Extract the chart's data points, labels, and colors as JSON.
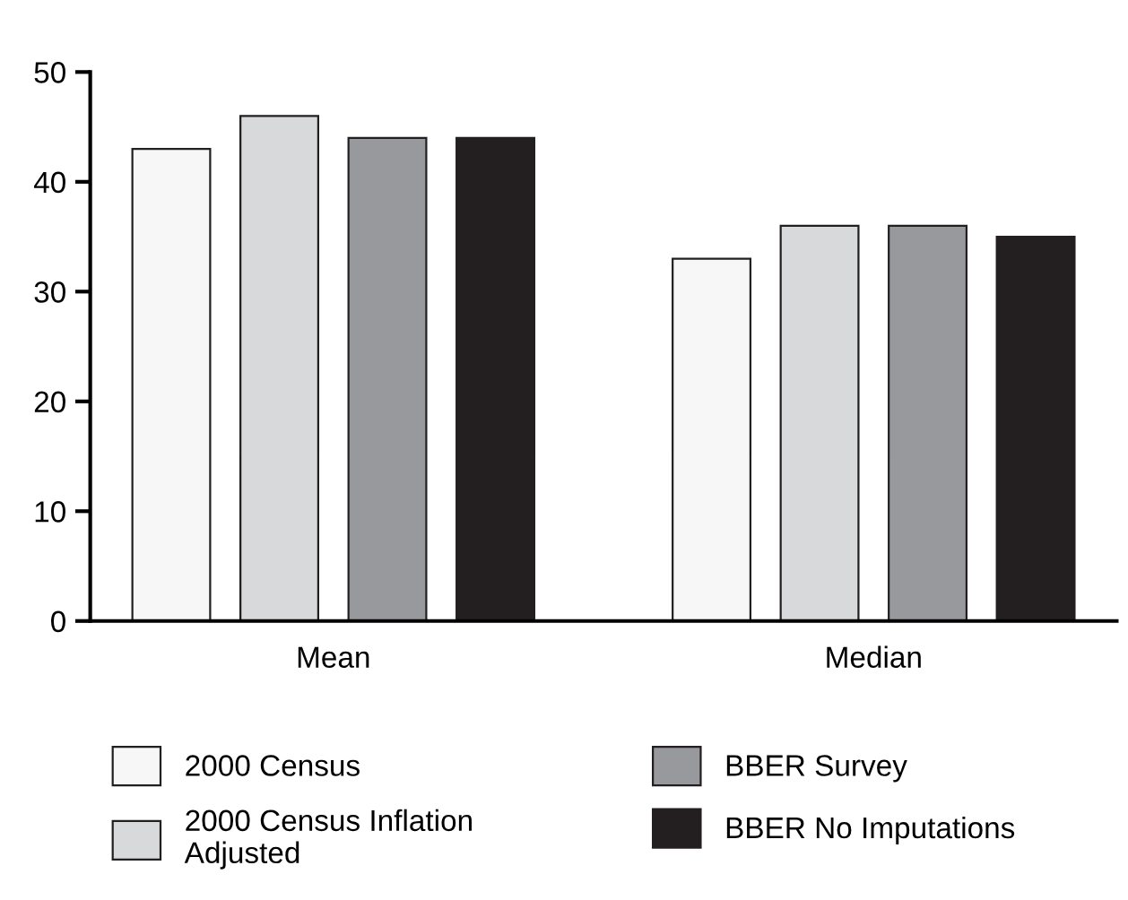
{
  "chart_data": {
    "type": "bar",
    "categories": [
      "Mean",
      "Median"
    ],
    "series": [
      {
        "name": "2000 Census",
        "color": "#f7f7f7",
        "values": [
          43,
          33
        ]
      },
      {
        "name": "2000 Census Inflation\nAdjusted",
        "color": "#d8d9db",
        "values": [
          46,
          36
        ]
      },
      {
        "name": "BBER Survey",
        "color": "#98999d",
        "values": [
          44,
          36
        ]
      },
      {
        "name": "BBER No Imputations",
        "color": "#231f20",
        "values": [
          44,
          35
        ]
      }
    ],
    "ylim": [
      0,
      50
    ],
    "yticks": [
      0,
      10,
      20,
      30,
      40,
      50
    ],
    "grid": false,
    "legend": "bottom"
  }
}
